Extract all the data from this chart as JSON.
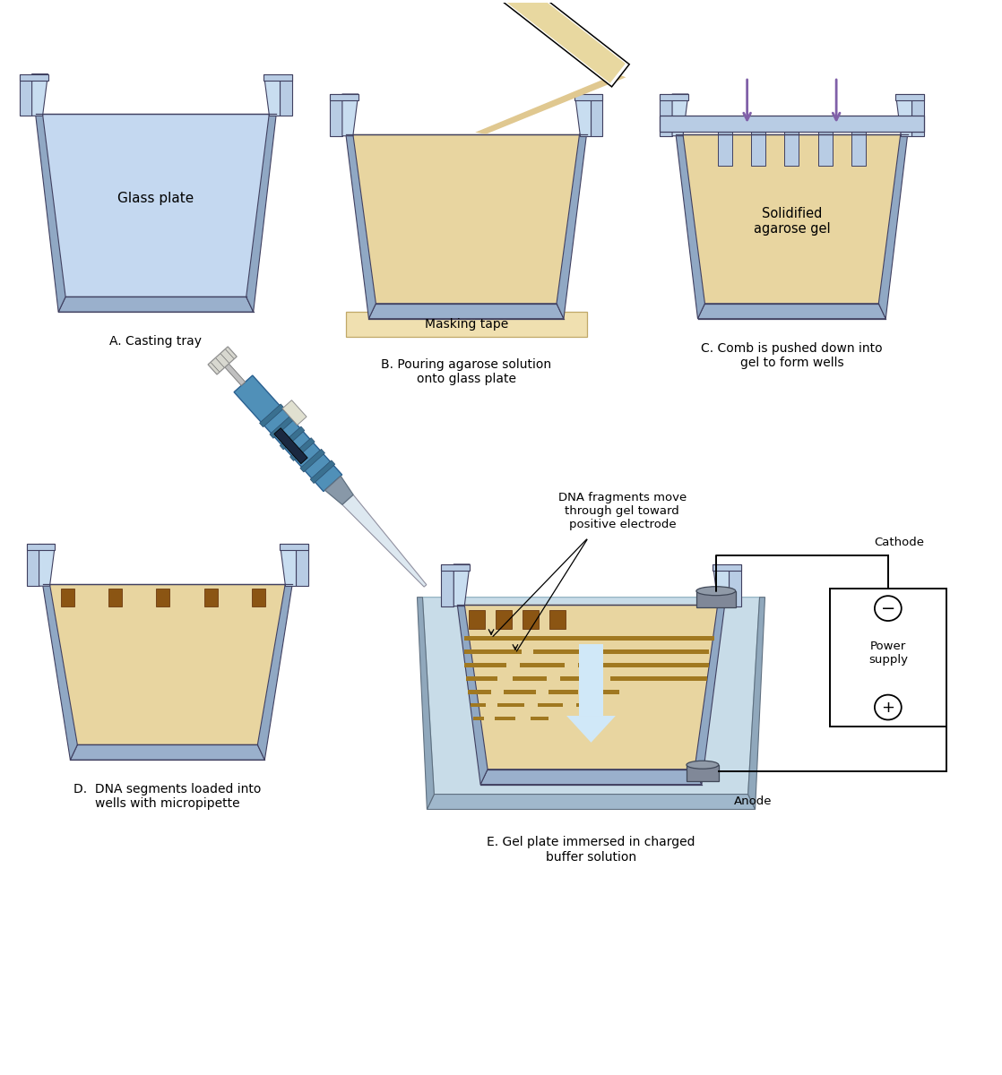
{
  "bg_color": "#ffffff",
  "tray_color": "#b8cce4",
  "tray_edge_color": "#404060",
  "tray_inner_color": "#c8ddf0",
  "tray_side_color": "#90a8c4",
  "tray_bottom_color": "#9ab0cc",
  "gel_color": "#e8d5a0",
  "gel_edge_color": "#a07820",
  "gel_dark": "#c9a84c",
  "masking_tape_color": "#f0e0b0",
  "arrow_color": "#8060a8",
  "text_color": "#000000",
  "label_color": "#000000",
  "dna_band_color": "#a07020",
  "fig_width": 11.18,
  "fig_height": 12.0,
  "panel_labels": [
    "A. Casting tray",
    "B. Pouring agarose solution\nonto glass plate",
    "C. Comb is pushed down into\ngel to form wells",
    "D.  DNA segments loaded into\nwells with micropipette",
    "E. Gel plate immersed in charged\nbuffer solution"
  ]
}
